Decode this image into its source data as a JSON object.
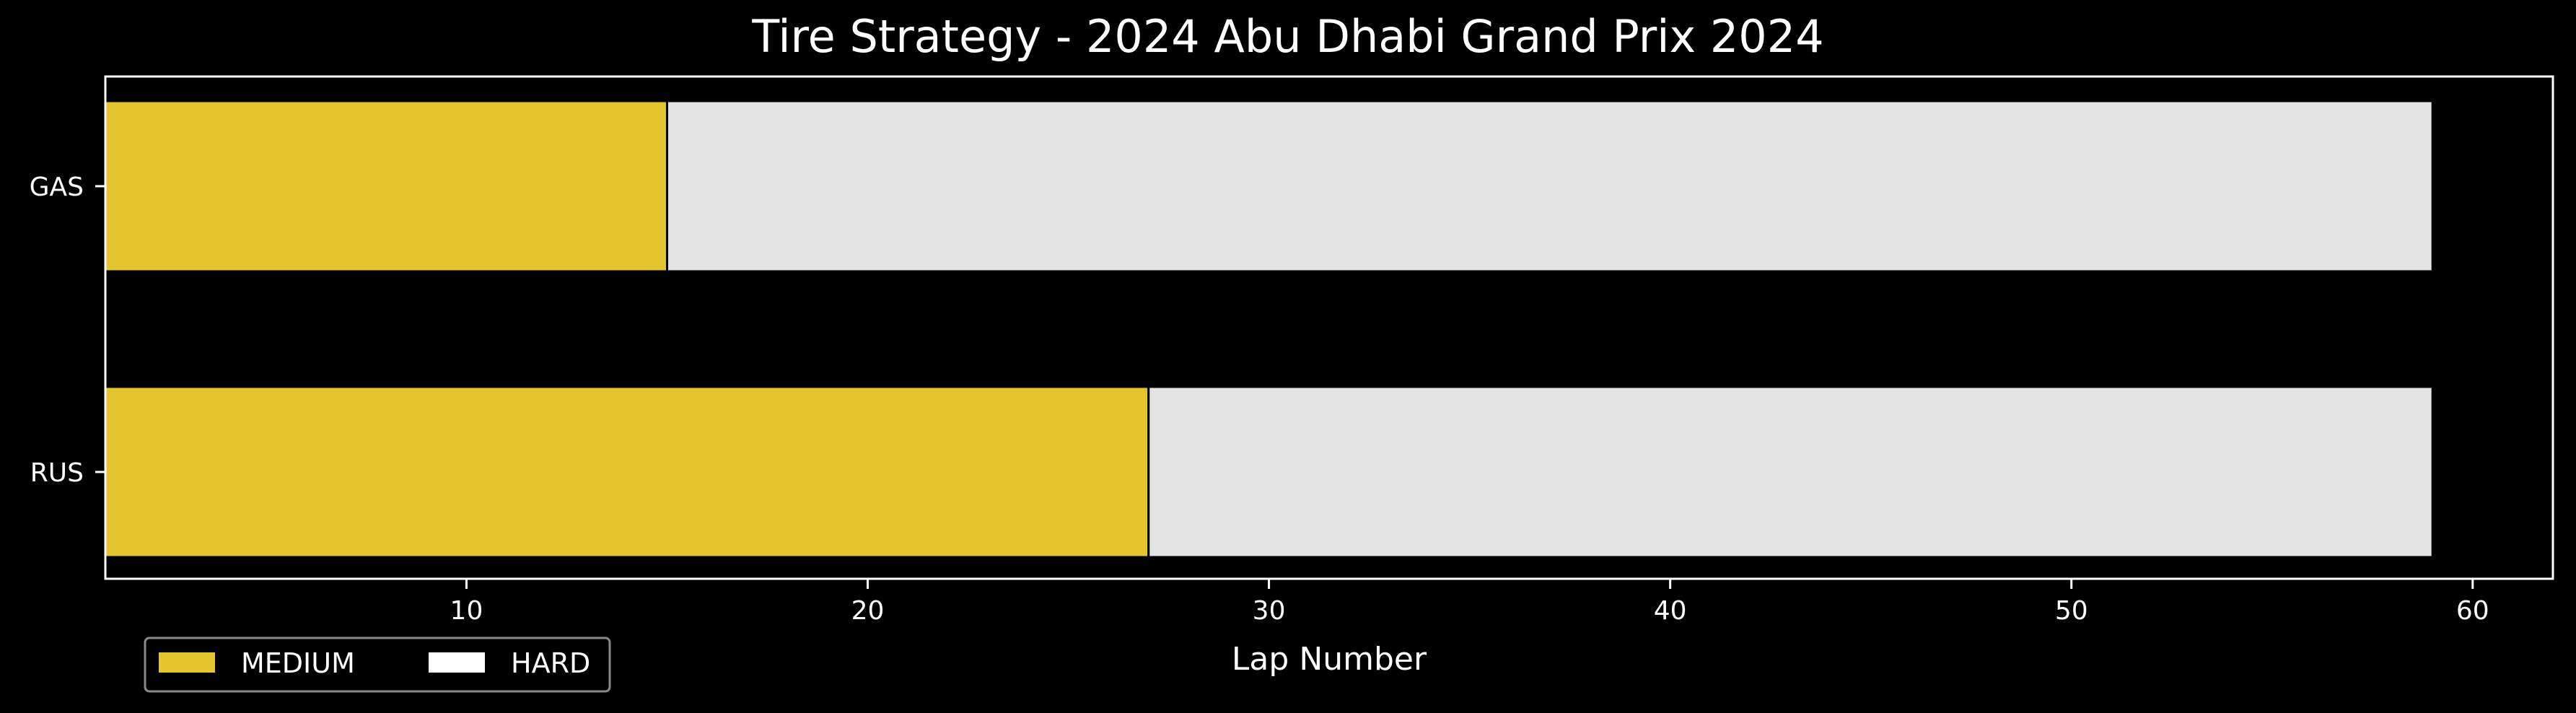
{
  "chart_data": {
    "type": "bar",
    "orientation": "horizontal",
    "stacked": true,
    "title": "Tire Strategy - 2024 Abu Dhabi Grand Prix 2024",
    "xlabel": "Lap Number",
    "ylabel": "",
    "xlim": [
      1,
      62
    ],
    "xticks": [
      10,
      20,
      30,
      40,
      50,
      60
    ],
    "categories": [
      "GAS",
      "RUS"
    ],
    "series": [
      {
        "name": "MEDIUM",
        "color": "#e3c62f"
      },
      {
        "name": "HARD",
        "color": "#e3e3e3"
      }
    ],
    "stints": [
      {
        "driver": "GAS",
        "compound": "MEDIUM",
        "start_lap": 1,
        "end_lap": 15
      },
      {
        "driver": "GAS",
        "compound": "HARD",
        "start_lap": 15,
        "end_lap": 59
      },
      {
        "driver": "RUS",
        "compound": "MEDIUM",
        "start_lap": 1,
        "end_lap": 27
      },
      {
        "driver": "RUS",
        "compound": "HARD",
        "start_lap": 27,
        "end_lap": 59
      }
    ],
    "grid": false,
    "legend": {
      "position": "bottom-left",
      "entries": [
        "MEDIUM",
        "HARD"
      ]
    },
    "background": "#000000",
    "text_color": "#ffffff"
  }
}
